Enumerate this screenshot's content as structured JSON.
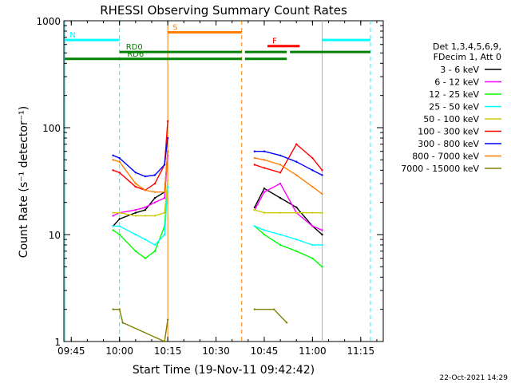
{
  "chart_data": {
    "type": "line",
    "title": "RHESSI Observing Summary Count Rates",
    "xlabel": "Start Time (19-Nov-11 09:42:42)",
    "ylabel": "Count Rate (s⁻¹ detector⁻¹)",
    "yscale": "log",
    "ylim": [
      1,
      1000
    ],
    "xlim_minutes": [
      -57,
      0
    ],
    "x_ticks": [
      "09:45",
      "10:00",
      "10:15",
      "10:30",
      "10:45",
      "11:00",
      "11:15"
    ],
    "y_ticks": [
      "1",
      "10",
      "100",
      "1000"
    ],
    "legend_placement": "right",
    "legend_header": [
      "Det 1,3,4,5,6,9,",
      "FDecim 1, Att 0"
    ],
    "footer_date": "22-Oct-2021 14:29",
    "flag_labels": {
      "night": "N",
      "saa": "S",
      "flare": "F",
      "rd0": "RD0",
      "rd6": "RD6"
    },
    "series": [
      {
        "name": "3 - 6 keV",
        "color": "#000000",
        "points": [
          [
            "09:58",
            12
          ],
          [
            "10:00",
            14
          ],
          [
            "10:05",
            16
          ],
          [
            "10:08",
            17
          ],
          [
            "10:11",
            22
          ],
          [
            "10:14",
            25
          ],
          [
            "10:15",
            60
          ],
          [
            "10:42",
            18
          ],
          [
            "10:45",
            27
          ],
          [
            "10:50",
            22
          ],
          [
            "10:55",
            18
          ],
          [
            "11:00",
            12
          ],
          [
            "11:03",
            10
          ]
        ]
      },
      {
        "name": "6 - 12 keV",
        "color": "#ff00ff",
        "points": [
          [
            "09:58",
            15
          ],
          [
            "10:00",
            16
          ],
          [
            "10:05",
            17
          ],
          [
            "10:08",
            18
          ],
          [
            "10:11",
            20
          ],
          [
            "10:14",
            22
          ],
          [
            "10:15",
            55
          ],
          [
            "10:42",
            17
          ],
          [
            "10:45",
            25
          ],
          [
            "10:50",
            30
          ],
          [
            "10:55",
            16
          ],
          [
            "11:00",
            12
          ],
          [
            "11:03",
            11
          ]
        ]
      },
      {
        "name": "12 - 25 keV",
        "color": "#00ff00",
        "points": [
          [
            "09:58",
            11
          ],
          [
            "10:00",
            10
          ],
          [
            "10:05",
            7
          ],
          [
            "10:08",
            6
          ],
          [
            "10:11",
            7
          ],
          [
            "10:14",
            12
          ],
          [
            "10:15",
            28
          ],
          [
            "10:42",
            12
          ],
          [
            "10:45",
            10
          ],
          [
            "10:50",
            8
          ],
          [
            "10:55",
            7
          ],
          [
            "11:00",
            6
          ],
          [
            "11:03",
            5
          ]
        ]
      },
      {
        "name": "25 - 50 keV",
        "color": "#00ffff",
        "points": [
          [
            "09:58",
            12
          ],
          [
            "10:00",
            12
          ],
          [
            "10:05",
            10
          ],
          [
            "10:08",
            9
          ],
          [
            "10:11",
            8
          ],
          [
            "10:14",
            10
          ],
          [
            "10:15",
            28
          ],
          [
            "10:42",
            12
          ],
          [
            "10:45",
            11
          ],
          [
            "10:50",
            10
          ],
          [
            "10:55",
            9
          ],
          [
            "11:00",
            8
          ],
          [
            "11:03",
            8
          ]
        ]
      },
      {
        "name": "50 - 100 keV",
        "color": "#cccc00",
        "points": [
          [
            "09:58",
            16
          ],
          [
            "10:00",
            16
          ],
          [
            "10:05",
            15
          ],
          [
            "10:08",
            15
          ],
          [
            "10:11",
            15
          ],
          [
            "10:14",
            16
          ],
          [
            "10:15",
            32
          ],
          [
            "10:42",
            17
          ],
          [
            "10:45",
            16
          ],
          [
            "10:50",
            16
          ],
          [
            "10:55",
            16
          ],
          [
            "11:00",
            16
          ],
          [
            "11:03",
            16
          ]
        ]
      },
      {
        "name": "100 - 300 keV",
        "color": "#ff0000",
        "points": [
          [
            "09:58",
            40
          ],
          [
            "10:00",
            38
          ],
          [
            "10:05",
            28
          ],
          [
            "10:08",
            26
          ],
          [
            "10:11",
            30
          ],
          [
            "10:14",
            45
          ],
          [
            "10:15",
            115
          ],
          [
            "10:42",
            45
          ],
          [
            "10:45",
            42
          ],
          [
            "10:50",
            38
          ],
          [
            "10:55",
            70
          ],
          [
            "11:00",
            52
          ],
          [
            "11:03",
            40
          ]
        ]
      },
      {
        "name": "300 - 800 keV",
        "color": "#0000ff",
        "points": [
          [
            "09:58",
            55
          ],
          [
            "10:00",
            52
          ],
          [
            "10:05",
            38
          ],
          [
            "10:08",
            35
          ],
          [
            "10:11",
            36
          ],
          [
            "10:14",
            45
          ],
          [
            "10:15",
            80
          ],
          [
            "10:42",
            60
          ],
          [
            "10:45",
            60
          ],
          [
            "10:50",
            55
          ],
          [
            "10:55",
            48
          ],
          [
            "11:00",
            40
          ],
          [
            "11:03",
            36
          ]
        ]
      },
      {
        "name": "800 - 7000 keV",
        "color": "#ff8000",
        "points": [
          [
            "09:58",
            50
          ],
          [
            "10:00",
            48
          ],
          [
            "10:05",
            30
          ],
          [
            "10:08",
            26
          ],
          [
            "10:11",
            25
          ],
          [
            "10:14",
            25
          ],
          [
            "10:15",
            60
          ],
          [
            "10:42",
            52
          ],
          [
            "10:45",
            50
          ],
          [
            "10:50",
            45
          ],
          [
            "10:55",
            36
          ],
          [
            "11:00",
            28
          ],
          [
            "11:03",
            24
          ]
        ]
      },
      {
        "name": "7000 - 15000 keV",
        "color": "#808000",
        "points": [
          [
            "09:58",
            2
          ],
          [
            "10:00",
            2
          ],
          [
            "10:01",
            1.5
          ],
          [
            "10:14",
            1
          ],
          [
            "10:15",
            1.6
          ],
          [
            "10:42",
            2
          ],
          [
            "10:48",
            2
          ],
          [
            "10:52",
            1.5
          ]
        ]
      }
    ],
    "flag_bars": [
      {
        "label": "night",
        "color": "#00ffff",
        "segments": [
          [
            "09:43",
            "10:00"
          ],
          [
            "11:03",
            "11:18"
          ]
        ],
        "level": 660
      },
      {
        "label": "saa",
        "color": "#ff8000",
        "segments": [
          [
            "10:15",
            "10:38"
          ]
        ],
        "level": 780
      },
      {
        "label": "flare",
        "color": "#ff0000",
        "segments": [
          [
            "10:46",
            "10:56"
          ]
        ],
        "level": 580
      },
      {
        "label": "rd0",
        "color": "#008000",
        "segments": [
          [
            "10:00",
            "10:38"
          ],
          [
            "10:39",
            "10:52"
          ],
          [
            "10:53",
            "11:18"
          ]
        ],
        "level": 510
      },
      {
        "label": "rd6",
        "color": "#008000",
        "segments": [
          [
            "09:43",
            "10:10"
          ],
          [
            "10:10",
            "10:38"
          ],
          [
            "10:39",
            "10:52"
          ]
        ],
        "level": 440
      }
    ],
    "vlines": [
      {
        "time": "09:43",
        "color": "#00ffff",
        "style": "solid"
      },
      {
        "time": "10:00",
        "color": "#00ffff",
        "style": "dashed"
      },
      {
        "time": "10:15",
        "color": "#ff8000",
        "style": "solid"
      },
      {
        "time": "10:38",
        "color": "#ff8000",
        "style": "dashed"
      },
      {
        "time": "11:03",
        "color": "#00ffff",
        "style": "solid"
      },
      {
        "time": "11:18",
        "color": "#00ffff",
        "style": "dashed"
      }
    ]
  }
}
